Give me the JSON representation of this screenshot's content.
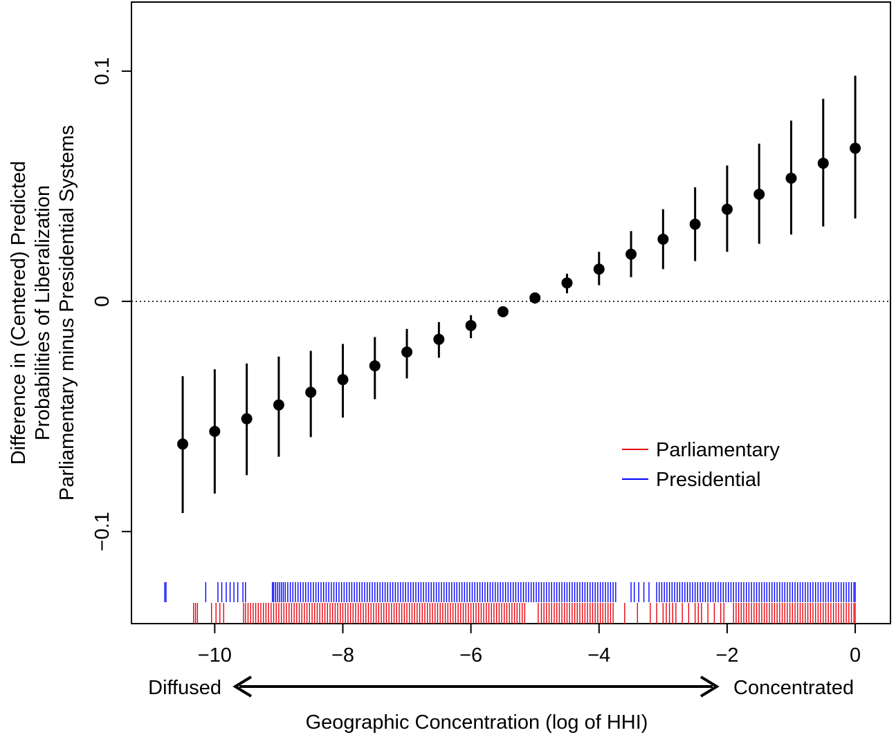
{
  "chart_data": {
    "type": "scatter",
    "title": "",
    "xlabel": "Geographic Concentration (log of HHI)",
    "ylabel_lines": [
      "Difference in (Centered) Predicted",
      "Probabilities of Liberalization",
      "Parliamentary minus Presidential Systems"
    ],
    "xlim": [
      -11.3,
      0.55
    ],
    "ylim": [
      -0.14,
      0.13
    ],
    "x_ticks": [
      -10,
      -8,
      -6,
      -4,
      -2,
      0
    ],
    "x_tick_labels": [
      "−10",
      "−8",
      "−6",
      "−4",
      "−2",
      "0"
    ],
    "y_ticks": [
      -0.1,
      0,
      0.1
    ],
    "y_tick_labels": [
      "−0.1",
      "0",
      "0.1"
    ],
    "reference_line_y": 0,
    "direction_labels": {
      "left": "Diffused",
      "right": "Concentrated"
    },
    "estimates": {
      "x": [
        -10.5,
        -10,
        -9.5,
        -9,
        -8.5,
        -8,
        -7.5,
        -7,
        -6.5,
        -6,
        -5.5,
        -5,
        -4.5,
        -4,
        -3.5,
        -3,
        -2.5,
        -2,
        -1.5,
        -1,
        -0.5,
        0
      ],
      "y": [
        -0.062,
        -0.0565,
        -0.051,
        -0.045,
        -0.0395,
        -0.034,
        -0.028,
        -0.022,
        -0.0165,
        -0.0105,
        -0.0045,
        0.0015,
        0.008,
        0.014,
        0.0205,
        0.027,
        0.0335,
        0.04,
        0.0465,
        0.0535,
        0.06,
        0.0665
      ],
      "lower": [
        -0.092,
        -0.0835,
        -0.0755,
        -0.0675,
        -0.059,
        -0.0505,
        -0.0425,
        -0.0335,
        -0.0245,
        -0.016,
        -0.0065,
        -0.001,
        0.0035,
        0.007,
        0.0105,
        0.014,
        0.0175,
        0.0215,
        0.025,
        0.029,
        0.0325,
        0.036
      ],
      "upper": [
        -0.0325,
        -0.0295,
        -0.027,
        -0.024,
        -0.0215,
        -0.0185,
        -0.0155,
        -0.012,
        -0.009,
        -0.006,
        -0.0025,
        0.0035,
        0.012,
        0.0215,
        0.0305,
        0.04,
        0.0495,
        0.059,
        0.0685,
        0.0785,
        0.088,
        0.098
      ],
      "color": "#000000"
    },
    "legend": {
      "position": "bottom-right",
      "items": [
        {
          "label": "Parliamentary",
          "color": "#e8000b"
        },
        {
          "label": "Presidential",
          "color": "#0000ff"
        }
      ]
    },
    "rug": [
      {
        "name": "Presidential",
        "color": "#0000ff",
        "x": [
          -10.78,
          -10.76,
          -10.14,
          -9.95,
          -9.89,
          -9.82,
          -9.76,
          -9.7,
          -9.64,
          -9.56,
          -9.52,
          -9.1,
          -9.08,
          -9.05,
          -9.02,
          -8.99,
          -8.96,
          -8.93,
          -8.9,
          -8.86,
          -8.82,
          -8.78,
          -8.74,
          -8.7,
          -8.66,
          -8.62,
          -8.58,
          -8.54,
          -8.5,
          -8.46,
          -8.42,
          -8.38,
          -8.34,
          -8.3,
          -8.26,
          -8.22,
          -8.18,
          -8.14,
          -8.1,
          -8.06,
          -8.02,
          -7.98,
          -7.94,
          -7.9,
          -7.86,
          -7.82,
          -7.78,
          -7.74,
          -7.7,
          -7.66,
          -7.62,
          -7.58,
          -7.54,
          -7.5,
          -7.46,
          -7.42,
          -7.38,
          -7.34,
          -7.3,
          -7.26,
          -7.22,
          -7.18,
          -7.14,
          -7.1,
          -7.06,
          -7.02,
          -6.98,
          -6.94,
          -6.9,
          -6.86,
          -6.82,
          -6.78,
          -6.74,
          -6.7,
          -6.66,
          -6.62,
          -6.58,
          -6.54,
          -6.5,
          -6.46,
          -6.42,
          -6.38,
          -6.34,
          -6.3,
          -6.26,
          -6.22,
          -6.18,
          -6.14,
          -6.1,
          -6.06,
          -6.02,
          -5.98,
          -5.94,
          -5.9,
          -5.86,
          -5.82,
          -5.78,
          -5.74,
          -5.7,
          -5.66,
          -5.62,
          -5.58,
          -5.54,
          -5.5,
          -5.46,
          -5.42,
          -5.38,
          -5.34,
          -5.3,
          -5.26,
          -5.22,
          -5.18,
          -5.14,
          -5.1,
          -5.06,
          -5.02,
          -4.98,
          -4.94,
          -4.9,
          -4.86,
          -4.82,
          -4.78,
          -4.74,
          -4.7,
          -4.66,
          -4.62,
          -4.58,
          -4.54,
          -4.5,
          -4.46,
          -4.42,
          -4.38,
          -4.34,
          -4.3,
          -4.26,
          -4.22,
          -4.18,
          -4.14,
          -4.1,
          -4.06,
          -4.02,
          -3.98,
          -3.94,
          -3.9,
          -3.86,
          -3.82,
          -3.78,
          -3.74,
          -3.5,
          -3.45,
          -3.38,
          -3.3,
          -3.22,
          -3.1,
          -3.06,
          -3.02,
          -2.98,
          -2.94,
          -2.9,
          -2.86,
          -2.82,
          -2.78,
          -2.74,
          -2.7,
          -2.66,
          -2.62,
          -2.58,
          -2.54,
          -2.5,
          -2.46,
          -2.42,
          -2.38,
          -2.34,
          -2.3,
          -2.26,
          -2.22,
          -2.18,
          -2.14,
          -2.1,
          -2.06,
          -2.02,
          -1.98,
          -1.94,
          -1.9,
          -1.86,
          -1.82,
          -1.78,
          -1.74,
          -1.7,
          -1.66,
          -1.62,
          -1.58,
          -1.54,
          -1.5,
          -1.46,
          -1.42,
          -1.38,
          -1.34,
          -1.3,
          -1.26,
          -1.22,
          -1.18,
          -1.14,
          -1.1,
          -1.06,
          -1.02,
          -0.98,
          -0.94,
          -0.9,
          -0.86,
          -0.82,
          -0.78,
          -0.74,
          -0.7,
          -0.66,
          -0.62,
          -0.58,
          -0.54,
          -0.5,
          -0.46,
          -0.42,
          -0.38,
          -0.34,
          -0.3,
          -0.26,
          -0.22,
          -0.18,
          -0.14,
          -0.1,
          -0.06,
          -0.02,
          0
        ]
      },
      {
        "name": "Parliamentary",
        "color": "#e8000b",
        "x": [
          -10.33,
          -10.3,
          -10.27,
          -10.05,
          -9.98,
          -9.92,
          -9.86,
          -9.55,
          -9.52,
          -9.48,
          -9.44,
          -9.4,
          -9.36,
          -9.32,
          -9.28,
          -9.24,
          -9.2,
          -9.16,
          -9.12,
          -9.08,
          -9.04,
          -9.0,
          -8.96,
          -8.92,
          -8.88,
          -8.84,
          -8.8,
          -8.76,
          -8.72,
          -8.68,
          -8.64,
          -8.6,
          -8.56,
          -8.52,
          -8.48,
          -8.44,
          -8.4,
          -8.36,
          -8.32,
          -8.28,
          -8.24,
          -8.2,
          -8.16,
          -8.12,
          -8.08,
          -8.04,
          -8.0,
          -7.96,
          -7.92,
          -7.88,
          -7.84,
          -7.8,
          -7.76,
          -7.72,
          -7.68,
          -7.64,
          -7.6,
          -7.56,
          -7.52,
          -7.48,
          -7.44,
          -7.4,
          -7.36,
          -7.32,
          -7.28,
          -7.24,
          -7.2,
          -7.16,
          -7.12,
          -7.08,
          -7.04,
          -7.0,
          -6.96,
          -6.92,
          -6.88,
          -6.84,
          -6.8,
          -6.76,
          -6.72,
          -6.68,
          -6.64,
          -6.6,
          -6.56,
          -6.52,
          -6.48,
          -6.44,
          -6.4,
          -6.36,
          -6.32,
          -6.28,
          -6.24,
          -6.2,
          -6.16,
          -6.12,
          -6.08,
          -6.04,
          -6.0,
          -5.96,
          -5.92,
          -5.88,
          -5.84,
          -5.8,
          -5.76,
          -5.72,
          -5.68,
          -5.64,
          -5.6,
          -5.56,
          -5.52,
          -5.48,
          -5.44,
          -5.4,
          -5.36,
          -5.32,
          -5.28,
          -5.24,
          -5.2,
          -5.16,
          -4.95,
          -4.9,
          -4.86,
          -4.82,
          -4.78,
          -4.74,
          -4.7,
          -4.66,
          -4.62,
          -4.58,
          -4.54,
          -4.5,
          -4.46,
          -4.42,
          -4.38,
          -4.34,
          -4.3,
          -4.26,
          -4.22,
          -4.18,
          -4.14,
          -4.1,
          -4.06,
          -4.02,
          -3.98,
          -3.94,
          -3.9,
          -3.86,
          -3.82,
          -3.78,
          -3.6,
          -3.4,
          -3.2,
          -3.1,
          -3.0,
          -2.95,
          -2.9,
          -2.85,
          -2.8,
          -2.7,
          -2.6,
          -2.5,
          -2.45,
          -2.4,
          -2.3,
          -2.2,
          -2.1,
          -2.05,
          -1.9,
          -1.86,
          -1.82,
          -1.78,
          -1.74,
          -1.7,
          -1.66,
          -1.62,
          -1.58,
          -1.54,
          -1.5,
          -1.46,
          -1.42,
          -1.38,
          -1.34,
          -1.3,
          -1.26,
          -1.22,
          -1.18,
          -1.14,
          -1.1,
          -1.06,
          -1.02,
          -0.98,
          -0.94,
          -0.9,
          -0.86,
          -0.82,
          -0.78,
          -0.74,
          -0.7,
          -0.66,
          -0.62,
          -0.58,
          -0.54,
          -0.5,
          -0.46,
          -0.42,
          -0.38,
          -0.34,
          -0.3,
          -0.26,
          -0.22,
          -0.18,
          -0.14,
          -0.1,
          -0.06,
          -0.02,
          0
        ]
      }
    ]
  }
}
